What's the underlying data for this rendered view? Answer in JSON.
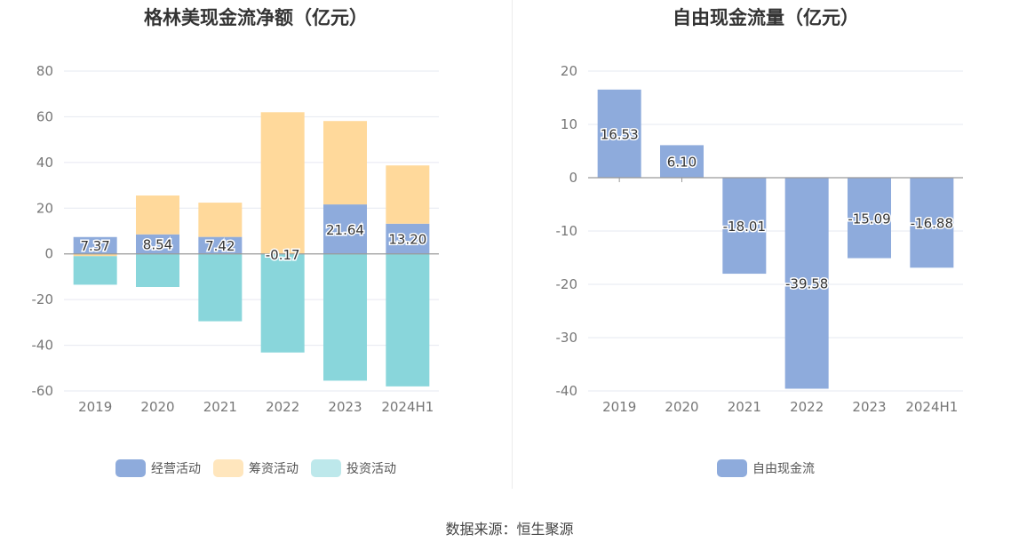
{
  "chart_data": [
    {
      "type": "bar",
      "stacked": true,
      "title": "格林美现金流净额（亿元）",
      "categories": [
        "2019",
        "2020",
        "2021",
        "2022",
        "2023",
        "2024H1"
      ],
      "ylim": [
        -60,
        80
      ],
      "yticks": [
        80,
        60,
        40,
        20,
        0,
        -20,
        -40,
        -60
      ],
      "grid": true,
      "legend_position": "bottom",
      "series": [
        {
          "name": "经营活动",
          "color": "#8eabdc",
          "values": [
            7.37,
            8.54,
            7.42,
            -0.17,
            21.64,
            13.2
          ],
          "labels": [
            "7.37",
            "8.54",
            "7.42",
            "-0.17",
            "21.64",
            "13.20"
          ]
        },
        {
          "name": "筹资活动",
          "color": "#ffd99b",
          "values": [
            -1.0,
            17.0,
            15.0,
            62.0,
            36.5,
            25.5
          ]
        },
        {
          "name": "投资活动",
          "color": "#89d6db",
          "values": [
            -12.5,
            -14.5,
            -29.5,
            -43.0,
            -55.5,
            -58.0
          ]
        }
      ],
      "legend_colors": [
        "#8eabdc",
        "#ffe6bd",
        "#bde8eb"
      ]
    },
    {
      "type": "bar",
      "title": "自由现金流量（亿元）",
      "categories": [
        "2019",
        "2020",
        "2021",
        "2022",
        "2023",
        "2024H1"
      ],
      "ylim": [
        -40,
        20
      ],
      "yticks": [
        20,
        10,
        0,
        -10,
        -20,
        -30,
        -40
      ],
      "grid": true,
      "legend_position": "bottom",
      "series": [
        {
          "name": "自由现金流",
          "color": "#8eabdc",
          "values": [
            16.53,
            6.1,
            -18.01,
            -39.58,
            -15.09,
            -16.88
          ],
          "labels": [
            "16.53",
            "6.10",
            "-18.01",
            "-39.58",
            "-15.09",
            "-16.88"
          ]
        }
      ]
    }
  ],
  "footer": {
    "source": "数据来源：恒生聚源"
  }
}
